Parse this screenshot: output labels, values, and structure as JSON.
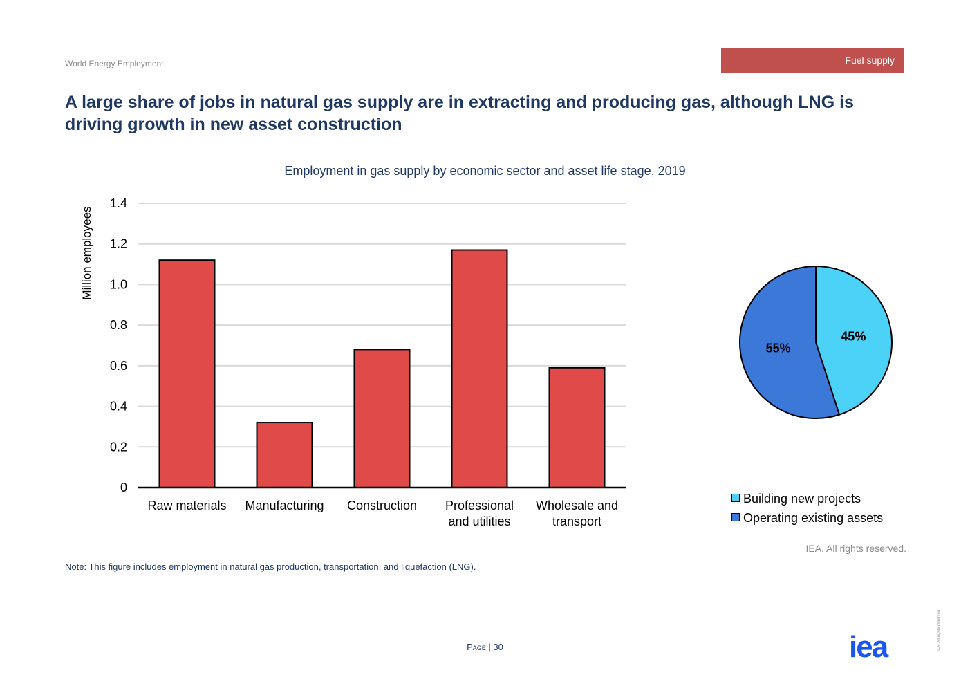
{
  "header": {
    "report_name": "World Energy Employment",
    "section_label": "Fuel supply",
    "headline": "A large share of jobs in natural gas supply are in extracting and producing gas, although LNG is driving growth in new asset construction"
  },
  "chart_data": [
    {
      "type": "bar",
      "title": "Employment in gas supply by economic sector and asset life stage, 2019",
      "ylabel": "Million employees",
      "xlabel": "",
      "categories": [
        [
          "Raw materials"
        ],
        [
          "Manufacturing"
        ],
        [
          "Construction"
        ],
        [
          "Professional",
          "and utilities"
        ],
        [
          "Wholesale and",
          "transport"
        ]
      ],
      "values": [
        1.12,
        0.32,
        0.68,
        1.17,
        0.59
      ],
      "ylim": [
        0,
        1.4
      ],
      "yticks": [
        "0",
        "0.2",
        "0.4",
        "0.6",
        "0.8",
        "1.0",
        "1.2",
        "1.4"
      ],
      "grid": true,
      "bar_color": "#e04a48"
    },
    {
      "type": "pie",
      "slices": [
        {
          "label": "Building new projects",
          "value": 45,
          "display": "45%",
          "color": "#4dd2f7"
        },
        {
          "label": "Operating existing assets",
          "value": 55,
          "display": "55%",
          "color": "#3c78d8"
        }
      ],
      "legend": "bottom"
    }
  ],
  "footer": {
    "copyright": "IEA. All rights reserved.",
    "note": "Note: This figure includes employment in natural gas production, transportation, and liquefaction (LNG).",
    "page_label": "Page",
    "page_number": "30",
    "side_rights": "IEA. All rights reserved.",
    "logo_text": "iea",
    "logo_color": "#1a56f0"
  }
}
